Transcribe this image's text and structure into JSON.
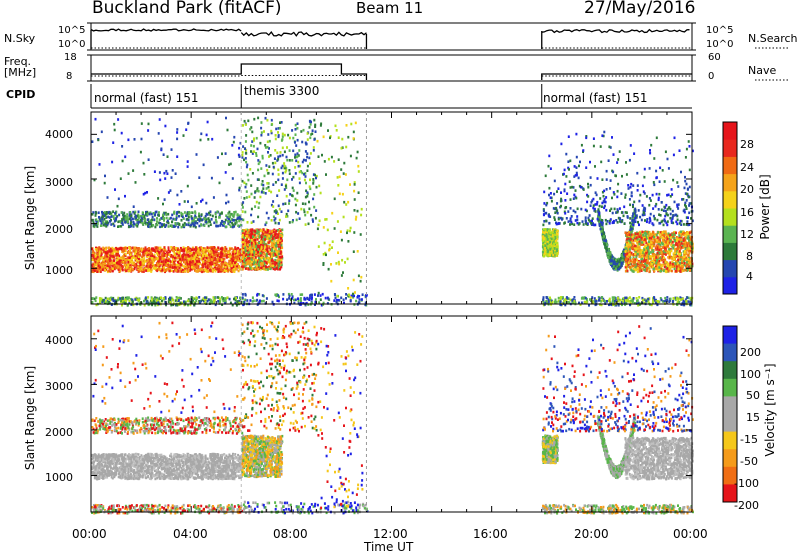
{
  "header": {
    "title": "Buckland Park (fitACF)",
    "beam": "Beam 11",
    "date": "27/May/2016"
  },
  "strips": {
    "nsky_label": "N.Sky",
    "nsky_top_tick": "10^5",
    "nsky_bottom_tick": "10^0",
    "nsearch_label": "N.Search",
    "nsearch_top_tick": "10^5",
    "nsearch_bottom_tick": "10^0",
    "freq_label": "Freq.",
    "freq_unit": "[MHz]",
    "freq_top_tick": "18",
    "freq_bottom_tick": "8",
    "nave_label": "Nave",
    "nave_top_tick": "60",
    "nave_bottom_tick": "0",
    "cpid_label": "CPID",
    "cpid_segments": [
      {
        "label": "normal (fast) 151",
        "start_h": 0,
        "end_h": 6
      },
      {
        "label": "themis 3300",
        "start_h": 6,
        "end_h": 11
      },
      {
        "label": "normal (fast) 151",
        "start_h": 18,
        "end_h": 24
      }
    ]
  },
  "chart_data": [
    {
      "type": "heatmap",
      "name": "power",
      "ylabel": "Slant Range [km]",
      "xlabel": "",
      "yticks": [
        "1000",
        "2000",
        "3000",
        "4000"
      ],
      "ylim": [
        200,
        4500
      ],
      "xlim_hours": [
        0,
        24
      ],
      "colorbar": {
        "label": "Power [dB]",
        "ticks": [
          "4",
          "8",
          "12",
          "16",
          "20",
          "24",
          "28"
        ],
        "colors": [
          "#1e22e6",
          "#2546b0",
          "#2d7a3a",
          "#5bb451",
          "#b4e01e",
          "#f5d21a",
          "#f5a31a",
          "#f06a14",
          "#e8281e",
          "#e6141a"
        ]
      },
      "data_gap_hours": [
        11,
        18
      ],
      "echo_band": {
        "center_km": 1200,
        "start_h": 0,
        "end_h": 6,
        "color": "#e6401e"
      }
    },
    {
      "type": "heatmap",
      "name": "velocity",
      "ylabel": "Slant Range [km]",
      "xlabel": "Time UT",
      "yticks": [
        "1000",
        "2000",
        "3000",
        "4000"
      ],
      "xticks": [
        "00:00",
        "04:00",
        "08:00",
        "12:00",
        "16:00",
        "20:00",
        "00:00"
      ],
      "ylim": [
        200,
        4500
      ],
      "xlim_hours": [
        0,
        24
      ],
      "colorbar": {
        "label": "Velocity [m s⁻¹]",
        "ticks": [
          "200",
          "100",
          "50",
          "15",
          "-15",
          "-50",
          "-100",
          "-200"
        ],
        "colors": [
          "#1e22e6",
          "#2c55b8",
          "#2e7a3c",
          "#58b64a",
          "#a8a8a8",
          "#a8a8a8",
          "#f5c71a",
          "#f59b1a",
          "#f06e14",
          "#e6141a"
        ]
      },
      "data_gap_hours": [
        11,
        18
      ]
    }
  ]
}
